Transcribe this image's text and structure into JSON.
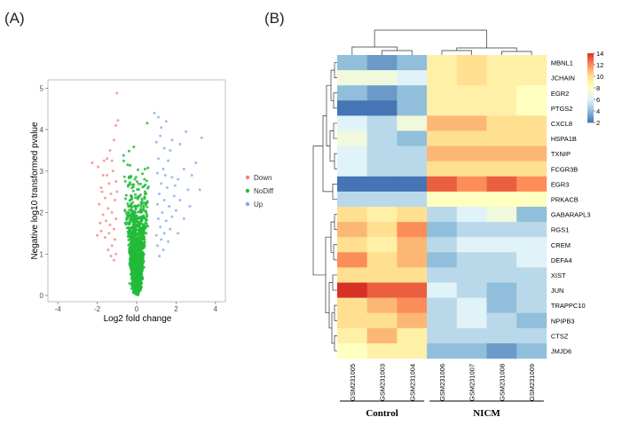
{
  "panel_labels": [
    "(A)",
    "(B)"
  ],
  "chart_data": [
    {
      "type": "scatter",
      "subtype": "volcano",
      "xlabel": "Log2 fold change",
      "ylabel": "Negative log10 transformed pvalue",
      "xlim": [
        -4.5,
        4.5
      ],
      "ylim": [
        -0.15,
        5.2
      ],
      "xticks": [
        -4,
        -2,
        0,
        2,
        4
      ],
      "yticks": [
        0,
        1,
        2,
        3,
        4,
        5
      ],
      "legend": {
        "position": "right",
        "entries": [
          {
            "label": "Down",
            "color": "#F08080"
          },
          {
            "label": "NoDiff",
            "color": "#22BB3A"
          },
          {
            "label": "Up",
            "color": "#7DA8E8"
          }
        ]
      },
      "series": [
        {
          "name": "Down",
          "points": [
            [
              -1.0,
              4.88
            ],
            [
              -0.95,
              4.22
            ],
            [
              -1.05,
              4.1
            ],
            [
              -1.15,
              3.75
            ],
            [
              -1.35,
              3.5
            ],
            [
              -1.5,
              3.3
            ],
            [
              -1.65,
              3.25
            ],
            [
              -1.7,
              2.9
            ],
            [
              -1.95,
              3.1
            ],
            [
              -2.25,
              3.2
            ],
            [
              -1.2,
              3.0
            ],
            [
              -1.4,
              2.7
            ],
            [
              -1.05,
              2.75
            ],
            [
              -1.8,
              2.6
            ],
            [
              -1.3,
              2.45
            ],
            [
              -1.6,
              2.35
            ],
            [
              -1.1,
              2.3
            ],
            [
              -1.9,
              2.2
            ],
            [
              -1.45,
              2.1
            ],
            [
              -1.25,
              2.0
            ],
            [
              -1.7,
              1.95
            ],
            [
              -1.05,
              1.85
            ],
            [
              -1.55,
              1.8
            ],
            [
              -1.35,
              1.7
            ],
            [
              -1.15,
              1.6
            ],
            [
              -1.8,
              1.55
            ],
            [
              -1.4,
              1.5
            ],
            [
              -1.6,
              1.4
            ],
            [
              -1.1,
              1.35
            ],
            [
              -1.25,
              1.2
            ],
            [
              -1.45,
              1.1
            ],
            [
              -2.0,
              1.45
            ],
            [
              -1.05,
              1.0
            ],
            [
              -1.3,
              0.95
            ],
            [
              -1.15,
              0.85
            ],
            [
              -1.5,
              2.9
            ],
            [
              -1.25,
              3.25
            ],
            [
              -1.75,
              2.5
            ],
            [
              -1.0,
              2.5
            ],
            [
              -1.85,
              1.75
            ]
          ]
        },
        {
          "name": "Up",
          "points": [
            [
              0.9,
              4.4
            ],
            [
              1.1,
              4.3
            ],
            [
              1.25,
              4.05
            ],
            [
              1.5,
              4.2
            ],
            [
              1.2,
              3.85
            ],
            [
              1.0,
              3.7
            ],
            [
              1.4,
              3.55
            ],
            [
              2.2,
              3.65
            ],
            [
              2.5,
              3.95
            ],
            [
              3.3,
              3.8
            ],
            [
              1.8,
              3.75
            ],
            [
              1.1,
              3.3
            ],
            [
              1.6,
              3.25
            ],
            [
              1.35,
              3.05
            ],
            [
              1.05,
              2.95
            ],
            [
              1.8,
              2.85
            ],
            [
              2.1,
              2.8
            ],
            [
              2.4,
              3.05
            ],
            [
              3.0,
              3.2
            ],
            [
              2.8,
              2.9
            ],
            [
              3.2,
              2.55
            ],
            [
              2.6,
              2.55
            ],
            [
              1.25,
              2.7
            ],
            [
              1.55,
              2.6
            ],
            [
              1.15,
              2.45
            ],
            [
              1.9,
              2.4
            ],
            [
              1.4,
              2.3
            ],
            [
              2.2,
              2.3
            ],
            [
              1.05,
              2.2
            ],
            [
              1.65,
              2.15
            ],
            [
              2.0,
              2.05
            ],
            [
              1.3,
              2.0
            ],
            [
              1.8,
              1.9
            ],
            [
              1.1,
              1.85
            ],
            [
              1.5,
              1.8
            ],
            [
              2.4,
              1.85
            ],
            [
              1.2,
              1.65
            ],
            [
              1.7,
              1.6
            ],
            [
              1.4,
              1.5
            ],
            [
              1.0,
              1.45
            ],
            [
              2.1,
              1.5
            ],
            [
              1.25,
              1.35
            ],
            [
              1.6,
              1.3
            ],
            [
              1.05,
              1.2
            ],
            [
              1.35,
              1.1
            ],
            [
              1.15,
              0.95
            ],
            [
              2.7,
              2.15
            ],
            [
              1.95,
              2.65
            ],
            [
              1.45,
              2.9
            ],
            [
              1.7,
              3.5
            ]
          ]
        },
        {
          "name": "NoDiff",
          "generated": true,
          "count": 1500,
          "description": "dense green funnel of non-significant genes, |log2FC| < 1, peaking near 4.3"
        }
      ]
    },
    {
      "type": "heatmap",
      "samples": [
        "GSM231005",
        "GSM231003",
        "GSM231004",
        "GSM231006",
        "GSM231007",
        "GSM231008",
        "GSM231009"
      ],
      "groups": [
        {
          "name": "Control",
          "samples": [
            "GSM231005",
            "GSM231003",
            "GSM231004"
          ]
        },
        {
          "name": "NICM",
          "samples": [
            "GSM231006",
            "GSM231007",
            "GSM231008",
            "GSM231009"
          ]
        }
      ],
      "genes": [
        "MBNL1",
        "JCHAIN",
        "EGR2",
        "PTGS2",
        "CXCL8",
        "HSPA1B",
        "TXNIP",
        "FCGR3B",
        "EGR3",
        "PRKACB",
        "GABARAPL3",
        "RGS1",
        "CREM",
        "DEFA4",
        "XIST",
        "JUN",
        "TRAPPC10",
        "NPIPB3",
        "CTSZ",
        "JMJD6"
      ],
      "values": [
        [
          4,
          3,
          4,
          9,
          10,
          9,
          9
        ],
        [
          7,
          7,
          6,
          9,
          10,
          9,
          9
        ],
        [
          4,
          3,
          4,
          9,
          9,
          9,
          8
        ],
        [
          2,
          2,
          4,
          9,
          9,
          9,
          8
        ],
        [
          6,
          5,
          7,
          11,
          11,
          10,
          10
        ],
        [
          7,
          5,
          4,
          10,
          10,
          10,
          10
        ],
        [
          6,
          5,
          5,
          11,
          11,
          11,
          11
        ],
        [
          6,
          5,
          5,
          10,
          10,
          10,
          10
        ],
        [
          2,
          2,
          2,
          13,
          12,
          13,
          12
        ],
        [
          5,
          5,
          5,
          8,
          8,
          8,
          8
        ],
        [
          10,
          9,
          10,
          5,
          6,
          7,
          4
        ],
        [
          11,
          10,
          12,
          4,
          5,
          5,
          5
        ],
        [
          10,
          9,
          11,
          5,
          6,
          6,
          6
        ],
        [
          12,
          10,
          11,
          4,
          5,
          5,
          6
        ],
        [
          10,
          10,
          10,
          5,
          5,
          5,
          5
        ],
        [
          14,
          13,
          13,
          6,
          5,
          4,
          5
        ],
        [
          10,
          11,
          12,
          5,
          6,
          4,
          5
        ],
        [
          10,
          10,
          11,
          5,
          6,
          5,
          4
        ],
        [
          9,
          11,
          9,
          5,
          5,
          5,
          5
        ],
        [
          8,
          9,
          9,
          4,
          4,
          3,
          4
        ]
      ],
      "color_scale": {
        "min": 2,
        "max": 14,
        "ticks": [
          2,
          4,
          6,
          8,
          10,
          12,
          14
        ],
        "colors": [
          "#4575B4",
          "#91BFDB",
          "#E0F3F8",
          "#FFFFBF",
          "#FEE090",
          "#FC8D59",
          "#D73027"
        ]
      }
    }
  ]
}
